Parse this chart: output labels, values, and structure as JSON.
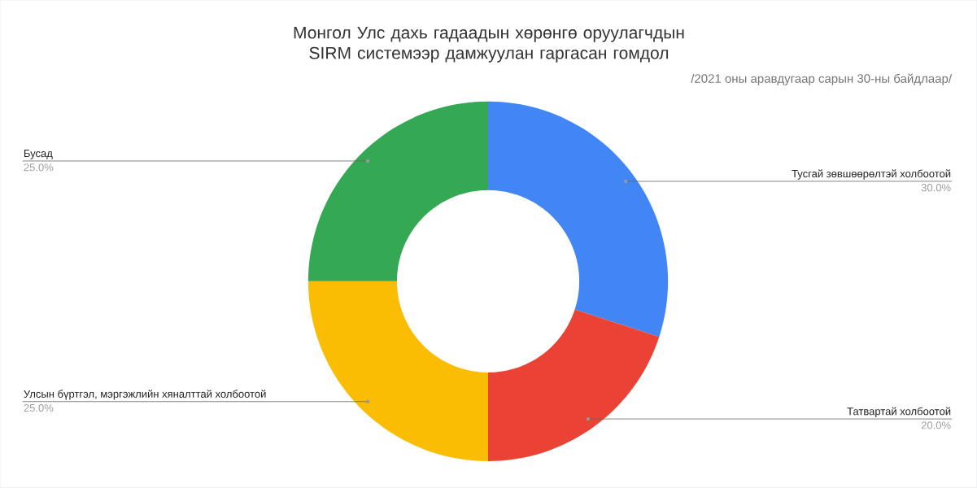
{
  "chart_data": {
    "type": "donut",
    "title": "Монгол Улс дахь гадаадын хөрөнгө оруулагчдын SIRM системээр дамжуулан гаргасан гомдол",
    "subtitle": "/2021 оны аравдугаар сарын 30-ны байдлаар/",
    "categories": [
      "Тусгай зөвшөөрөлтэй холбоотой",
      "Татвартай холбоотой",
      "Улсын бүртгэл, мэргэжлийн хяналттай холбоотой",
      "Бусад"
    ],
    "values": [
      30,
      20,
      25,
      25
    ],
    "colors": [
      "#4285f4",
      "#ea4335",
      "#fbbc04",
      "#34a853"
    ],
    "value_labels": [
      "30.0%",
      "20.0%",
      "25.0%",
      "25.0%"
    ]
  }
}
